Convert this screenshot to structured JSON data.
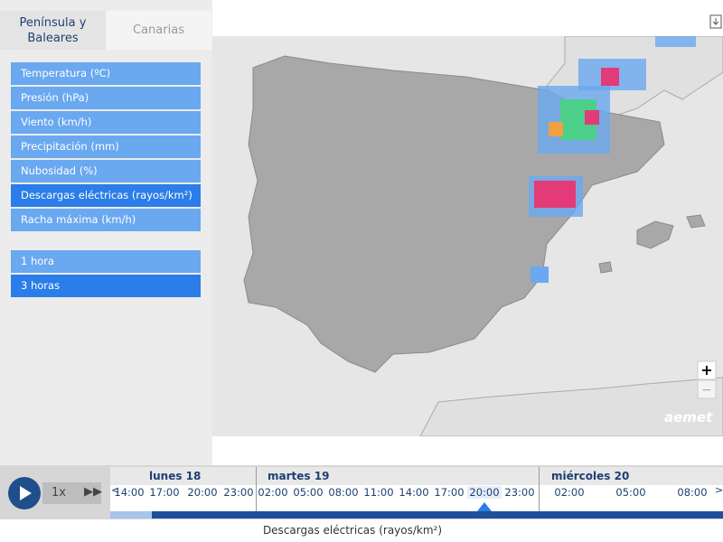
{
  "tabs": [
    "Península y Baleares",
    "Canarias"
  ],
  "variables": [
    "Temperatura (ºC)",
    "Presión (hPa)",
    "Viento (km/h)",
    "Precipitación (mm)",
    "Nubosidad (%)",
    "Descargas eléctricas (rayos/km²)",
    "Racha máxima (km/h)"
  ],
  "intervals": [
    "1 hora",
    "3 horas"
  ],
  "player": {
    "speed": "1x"
  },
  "timeline": {
    "days": [
      "lunes 18",
      "martes 19",
      "miércoles 20"
    ],
    "times": [
      "14:00",
      "17:00",
      "20:00",
      "23:00",
      "02:00",
      "05:00",
      "08:00",
      "11:00",
      "14:00",
      "17:00",
      "20:00",
      "23:00",
      "02:00",
      "05:00",
      "08:00"
    ]
  },
  "map": {
    "zoom_in": "+",
    "zoom_out": "−",
    "logo": "aemet"
  },
  "caption": "Descargas eléctricas (rayos/km²)"
}
